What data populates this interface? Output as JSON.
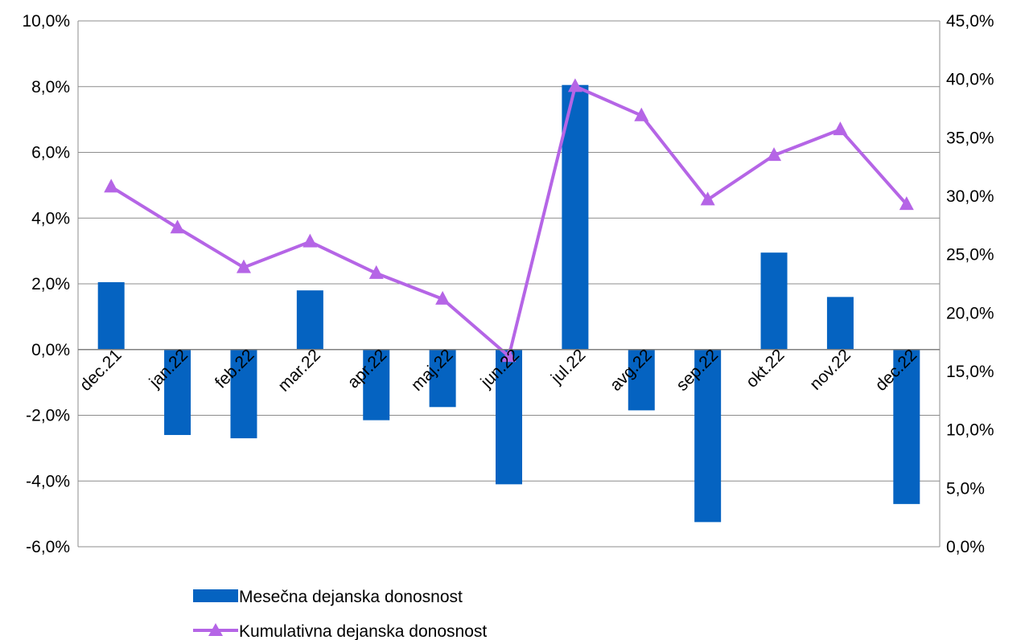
{
  "chart_data": {
    "type": "bar",
    "categories": [
      "dec.21",
      "jan.22",
      "feb.22",
      "mar.22",
      "apr.22",
      "maj.22",
      "jun.22",
      "jul.22",
      "avg.22",
      "sep.22",
      "okt.22",
      "nov.22",
      "dec.22"
    ],
    "series": [
      {
        "name": "Mesečna dejanska donosnost",
        "type": "bar",
        "axis": "left",
        "color": "#0563c1",
        "values": [
          2.05,
          -2.6,
          -2.7,
          1.8,
          -2.15,
          -1.75,
          -4.1,
          8.05,
          -1.85,
          -5.25,
          2.95,
          1.6,
          -4.7
        ]
      },
      {
        "name": "Kumulativna dejanska donosnost",
        "type": "line",
        "axis": "right",
        "marker": "triangle",
        "color": "#b565e6",
        "values": [
          30.8,
          27.3,
          23.9,
          26.1,
          23.4,
          21.2,
          16.3,
          39.4,
          36.9,
          29.7,
          33.5,
          35.7,
          29.3
        ]
      }
    ],
    "y_left": {
      "min": -6,
      "max": 10,
      "ticks": [
        "-6,0%",
        "-4,0%",
        "-2,0%",
        "0,0%",
        "2,0%",
        "4,0%",
        "6,0%",
        "8,0%",
        "10,0%"
      ]
    },
    "y_right": {
      "min": 0,
      "max": 45,
      "ticks": [
        "0,0%",
        "5,0%",
        "10,0%",
        "15,0%",
        "20,0%",
        "25,0%",
        "30,0%",
        "35,0%",
        "40,0%",
        "45,0%"
      ]
    },
    "grid": true,
    "legend_position": "bottom-left",
    "title": "",
    "xlabel": "",
    "ylabel": ""
  }
}
